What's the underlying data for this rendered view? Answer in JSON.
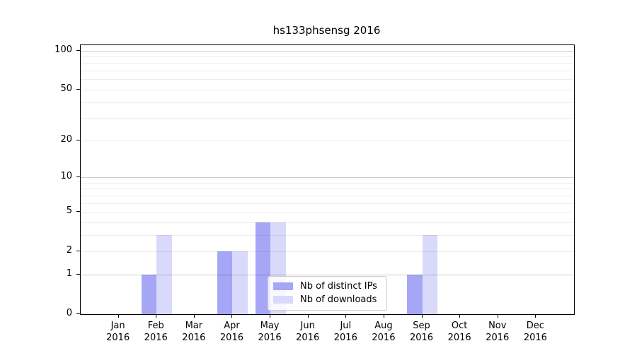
{
  "chart_data": {
    "type": "bar",
    "title": "hs133phsensg 2016",
    "categories": [
      "Jan 2016",
      "Feb 2016",
      "Mar 2016",
      "Apr 2016",
      "May 2016",
      "Jun 2016",
      "Jul 2016",
      "Aug 2016",
      "Sep 2016",
      "Oct 2016",
      "Nov 2016",
      "Dec 2016"
    ],
    "series": [
      {
        "name": "Nb of distinct IPs",
        "color": "#a6a6f6",
        "values": [
          0,
          1,
          0,
          2,
          4,
          0,
          0,
          0,
          1,
          0,
          0,
          0
        ]
      },
      {
        "name": "Nb of downloads",
        "color": "#d9d9fb",
        "values": [
          0,
          3,
          0,
          2,
          4,
          0,
          0,
          0,
          3,
          0,
          0,
          0
        ]
      }
    ],
    "xlabel": "",
    "ylabel": "",
    "yscale": "log10(1+v)",
    "ylim": [
      0,
      110
    ],
    "yticks": [
      0,
      1,
      2,
      5,
      10,
      20,
      50,
      100
    ],
    "major_gridlines": [
      1,
      10,
      100
    ],
    "minor_gridlines": [
      2,
      3,
      4,
      5,
      6,
      7,
      8,
      9,
      20,
      30,
      40,
      50,
      60,
      70,
      80,
      90
    ],
    "grid": true,
    "legend_position": "lower center",
    "colors": {
      "background": "#ffffff",
      "spine": "#000000",
      "text": "#000000",
      "major_grid": "#cccccc",
      "minor_grid": "#ededed",
      "legend_border": "#cccccc"
    }
  }
}
